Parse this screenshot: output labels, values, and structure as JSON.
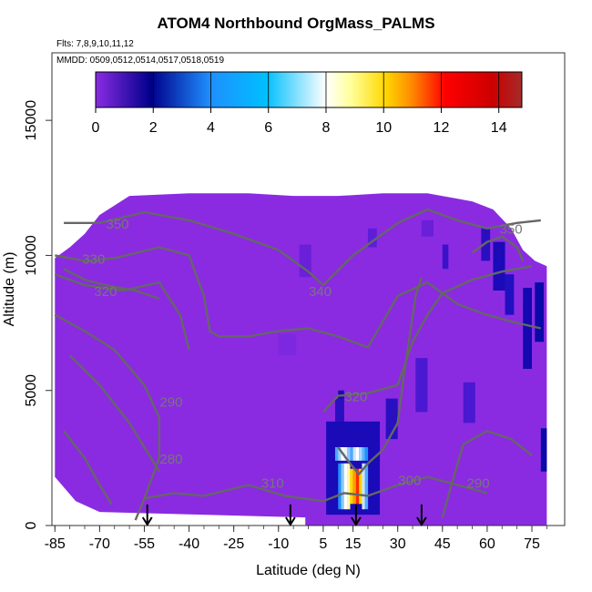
{
  "chart_data": {
    "type": "heatmap",
    "title": "ATOM4 Northbound OrgMass_PALMS",
    "subtitle_flights": "Flts: 7,8,9,10,11,12",
    "subtitle_dates": "MMDD: 0509,0512,0514,0517,0518,0519",
    "xlabel": "Latitude (deg N)",
    "ylabel": "Altitude (m)",
    "xlim": [
      -86,
      86
    ],
    "ylim": [
      0,
      17500
    ],
    "x_ticks": [
      -85,
      -70,
      -55,
      -40,
      -25,
      -10,
      5,
      15,
      30,
      45,
      60,
      75
    ],
    "y_ticks": [
      0,
      5000,
      10000,
      15000
    ],
    "colorbar": {
      "ticks": [
        0,
        2,
        4,
        6,
        8,
        10,
        12,
        14
      ],
      "range": [
        0,
        14.8
      ],
      "colors": [
        "#8a2be2",
        "#00008b",
        "#1e90ff",
        "#00bfff",
        "#ffffff",
        "#ffff99",
        "#ffd700",
        "#ff8c00",
        "#ff0000",
        "#cc0000",
        "#a52a2a"
      ]
    },
    "contour_labels": [
      {
        "text": "350",
        "x": -64,
        "y": 11000
      },
      {
        "text": "330",
        "x": -72,
        "y": 9700
      },
      {
        "text": "320",
        "x": -68,
        "y": 8500
      },
      {
        "text": "340",
        "x": 4,
        "y": 8500
      },
      {
        "text": "320",
        "x": 16,
        "y": 4600
      },
      {
        "text": "290",
        "x": -46,
        "y": 4400
      },
      {
        "text": "280",
        "x": -46,
        "y": 2300
      },
      {
        "text": "310",
        "x": -12,
        "y": 1400
      },
      {
        "text": "300",
        "x": 34,
        "y": 1500
      },
      {
        "text": "350",
        "x": 68,
        "y": 10800
      },
      {
        "text": "290",
        "x": 57,
        "y": 1400
      }
    ],
    "arrow_latitudes": [
      -54,
      -6,
      16,
      38
    ],
    "colors": {
      "contour": "#666666",
      "background_field": "#8a2be2"
    }
  }
}
